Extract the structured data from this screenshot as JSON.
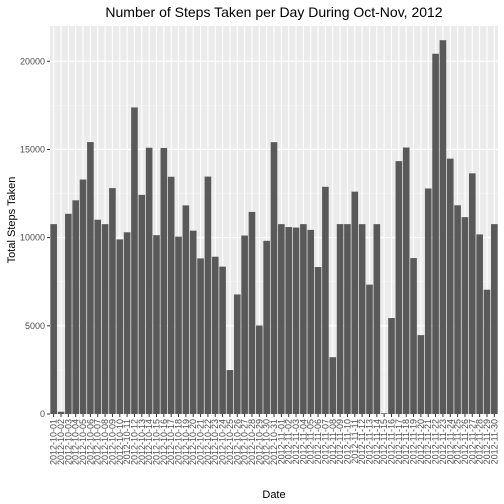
{
  "chart_data": {
    "type": "bar",
    "title": "Number of Steps Taken per Day During Oct-Nov, 2012",
    "xlabel": "Date",
    "ylabel": "Total Steps Taken",
    "ylim": [
      0,
      22000
    ],
    "yticks": [
      0,
      5000,
      10000,
      15000,
      20000
    ],
    "grid": true,
    "categories": [
      "2012-10-01",
      "2012-10-02",
      "2012-10-03",
      "2012-10-04",
      "2012-10-05",
      "2012-10-06",
      "2012-10-07",
      "2012-10-08",
      "2012-10-09",
      "2012-10-10",
      "2012-10-11",
      "2012-10-12",
      "2012-10-13",
      "2012-10-14",
      "2012-10-15",
      "2012-10-16",
      "2012-10-17",
      "2012-10-18",
      "2012-10-19",
      "2012-10-20",
      "2012-10-21",
      "2012-10-22",
      "2012-10-23",
      "2012-10-24",
      "2012-10-25",
      "2012-10-26",
      "2012-10-27",
      "2012-10-28",
      "2012-10-29",
      "2012-10-30",
      "2012-10-31",
      "2012-11-01",
      "2012-11-02",
      "2012-11-03",
      "2012-11-04",
      "2012-11-05",
      "2012-11-06",
      "2012-11-07",
      "2012-11-08",
      "2012-11-09",
      "2012-11-10",
      "2012-11-11",
      "2012-11-12",
      "2012-11-13",
      "2012-11-14",
      "2012-11-15",
      "2012-11-16",
      "2012-11-17",
      "2012-11-18",
      "2012-11-19",
      "2012-11-20",
      "2012-11-21",
      "2012-11-22",
      "2012-11-23",
      "2012-11-24",
      "2012-11-25",
      "2012-11-26",
      "2012-11-27",
      "2012-11-28",
      "2012-11-29",
      "2012-11-30"
    ],
    "values": [
      10766,
      126,
      11352,
      12116,
      13294,
      15420,
      11015,
      10766,
      12811,
      9900,
      10304,
      17382,
      12426,
      15098,
      10139,
      15084,
      13452,
      10056,
      11829,
      10395,
      8821,
      13460,
      8918,
      8355,
      2492,
      6778,
      10119,
      11458,
      5018,
      9819,
      15414,
      10766,
      10600,
      10571,
      10766,
      10439,
      8334,
      12883,
      3219,
      10766,
      10766,
      12608,
      10765,
      7336,
      10766,
      41,
      5441,
      14339,
      15110,
      8841,
      4472,
      12787,
      20427,
      21194,
      14478,
      11834,
      11162,
      13646,
      10183,
      7047,
      10766
    ],
    "bar_color": "#595959"
  }
}
